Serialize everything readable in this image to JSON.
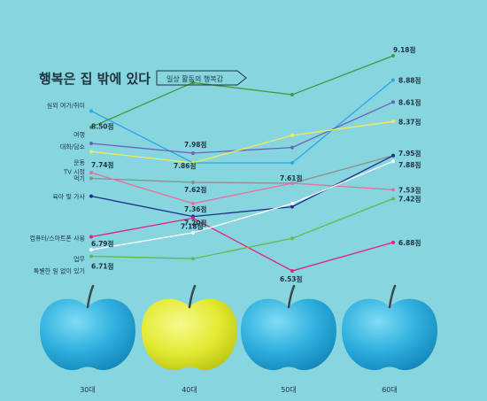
{
  "chart_data": {
    "type": "line",
    "title": "행복은 집 밖에 있다",
    "subtitle": "일상 활동의 행복감",
    "categories": [
      "30대",
      "40대",
      "50대",
      "60대"
    ],
    "unit": "점",
    "colors": {
      "outdoor": "#2ba6e8",
      "travel": "#3b9d3b",
      "conversation": "#6b63b6",
      "exercise": "#f2ec58",
      "tv": "#8e8e8e",
      "eating": "#e8709a",
      "childcare": "#1c2f8c",
      "computer": "#e0227e",
      "work": "#ffffff",
      "nothing": "#65b94b"
    },
    "series": [
      {
        "key": "outdoor",
        "name": "실외 여가/취미",
        "values": [
          8.5,
          7.86,
          7.86,
          8.88
        ]
      },
      {
        "key": "travel",
        "name": "여행",
        "values": [
          8.3,
          8.85,
          8.7,
          9.18
        ]
      },
      {
        "key": "conversation",
        "name": "대화/담소",
        "values": [
          8.1,
          7.98,
          8.05,
          8.61
        ]
      },
      {
        "key": "exercise",
        "name": "운동",
        "values": [
          8.0,
          7.86,
          8.2,
          8.37
        ]
      },
      {
        "key": "tv",
        "name": "TV 시청",
        "values": [
          7.67,
          7.62,
          7.61,
          7.95
        ]
      },
      {
        "key": "eating",
        "name": "먹기",
        "values": [
          7.74,
          7.36,
          7.61,
          7.53
        ]
      },
      {
        "key": "childcare",
        "name": "육아 및 가사",
        "values": [
          7.45,
          7.2,
          7.32,
          7.95
        ]
      },
      {
        "key": "computer",
        "name": "컴퓨터/스마트폰 사용",
        "values": [
          6.95,
          7.18,
          6.53,
          6.88
        ]
      },
      {
        "key": "work",
        "name": "업무",
        "values": [
          6.79,
          7.0,
          7.36,
          7.88
        ]
      },
      {
        "key": "nothing",
        "name": "특별한 일 없이 있기",
        "values": [
          6.71,
          6.68,
          6.93,
          7.42
        ]
      }
    ],
    "data_labels": [
      {
        "text": "8.50점",
        "series": "outdoor",
        "index": 0
      },
      {
        "text": "7.74점",
        "series": "eating",
        "index": 0
      },
      {
        "text": "6.79점",
        "series": "work",
        "index": 0
      },
      {
        "text": "6.71점",
        "series": "nothing",
        "index": 0
      },
      {
        "text": "7.98점",
        "series": "conversation",
        "index": 1
      },
      {
        "text": "7.86점",
        "series": "exercise",
        "index": 1
      },
      {
        "text": "7.62점",
        "series": "tv",
        "index": 1
      },
      {
        "text": "7.36점",
        "series": "eating",
        "index": 1
      },
      {
        "text": "7.20점",
        "series": "childcare",
        "index": 1
      },
      {
        "text": "7.18점",
        "series": "computer",
        "index": 1
      },
      {
        "text": "7.61점",
        "series": "tv",
        "index": 2
      },
      {
        "text": "6.53점",
        "series": "computer",
        "index": 2
      },
      {
        "text": "9.18점",
        "series": "travel",
        "index": 3
      },
      {
        "text": "8.88점",
        "series": "outdoor",
        "index": 3
      },
      {
        "text": "8.61점",
        "series": "conversation",
        "index": 3
      },
      {
        "text": "8.37점",
        "series": "exercise",
        "index": 3
      },
      {
        "text": "7.95점",
        "series": "tv",
        "index": 3
      },
      {
        "text": "7.88점",
        "series": "work",
        "index": 3
      },
      {
        "text": "7.53점",
        "series": "eating",
        "index": 3
      },
      {
        "text": "7.42점",
        "series": "nothing",
        "index": 3
      },
      {
        "text": "6.88점",
        "series": "computer",
        "index": 3
      }
    ],
    "apple_colors": [
      "#35b3de",
      "#e8ee3c",
      "#35b3de",
      "#35b3de"
    ]
  }
}
